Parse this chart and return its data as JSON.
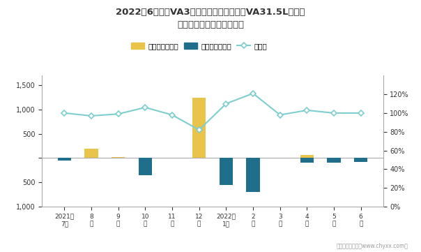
{
  "title_line1": "2022年6月捷达VA3旗下最畅销轿车（捷达VA31.5L）近一",
  "title_line2": "年库存情况及产销率统计图",
  "legend_jiyard": "积压库存（辆）",
  "legend_clearance": "清仓库存（辆）",
  "legend_rate": "产销率",
  "footer": "制图：智研咋询（www.chyxx.com）",
  "x_labels": [
    "2021年\n7月",
    "8\n月",
    "9\n月",
    "10\n月",
    "11\n月",
    "12\n月",
    "2022年\n1月",
    "2\n月",
    "3\n月",
    "4\n月",
    "5\n月",
    "6\n月"
  ],
  "jiyard_stock": [
    0,
    200,
    20,
    0,
    0,
    1250,
    0,
    0,
    0,
    60,
    0,
    0
  ],
  "clearance_stock": [
    -50,
    0,
    0,
    -350,
    0,
    0,
    -550,
    -700,
    0,
    -100,
    -100,
    -80
  ],
  "production_sales_rate": [
    1.0,
    0.97,
    0.99,
    1.06,
    0.98,
    0.82,
    1.1,
    1.21,
    0.98,
    1.03,
    1.0,
    1.0
  ],
  "jiyard_color": "#E8C44A",
  "clearance_color": "#1E6E8C",
  "line_color": "#7ECECE",
  "marker_face": "#FFFFFF",
  "ylim_left": [
    -1000,
    1700
  ],
  "ylim_right": [
    0,
    1.4
  ],
  "yticks_left": [
    -1000,
    -500,
    0,
    500,
    1000,
    1500
  ],
  "yticks_right": [
    0.0,
    0.2,
    0.4,
    0.6,
    0.8,
    1.0,
    1.2
  ],
  "bg_color": "#FFFFFF",
  "text_color": "#333333",
  "axis_color": "#AAAAAA",
  "grid_color": "#DDDDDD"
}
